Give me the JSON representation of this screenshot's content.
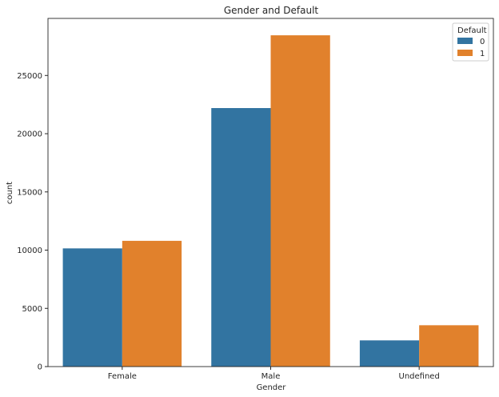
{
  "chart_data": {
    "type": "bar",
    "title": "Gender and Default",
    "xlabel": "Gender",
    "ylabel": "count",
    "categories": [
      "Female",
      "Male",
      "Undefined"
    ],
    "series": [
      {
        "name": "0",
        "values": [
          10150,
          22200,
          2250
        ],
        "color": "#3274a1"
      },
      {
        "name": "1",
        "values": [
          10800,
          28450,
          3550
        ],
        "color": "#e1812c"
      }
    ],
    "ylim": [
      0,
      29900
    ],
    "yticks": [
      0,
      5000,
      10000,
      15000,
      20000,
      25000
    ],
    "legend": {
      "title": "Default",
      "placement": "top-right"
    },
    "grid": false
  }
}
